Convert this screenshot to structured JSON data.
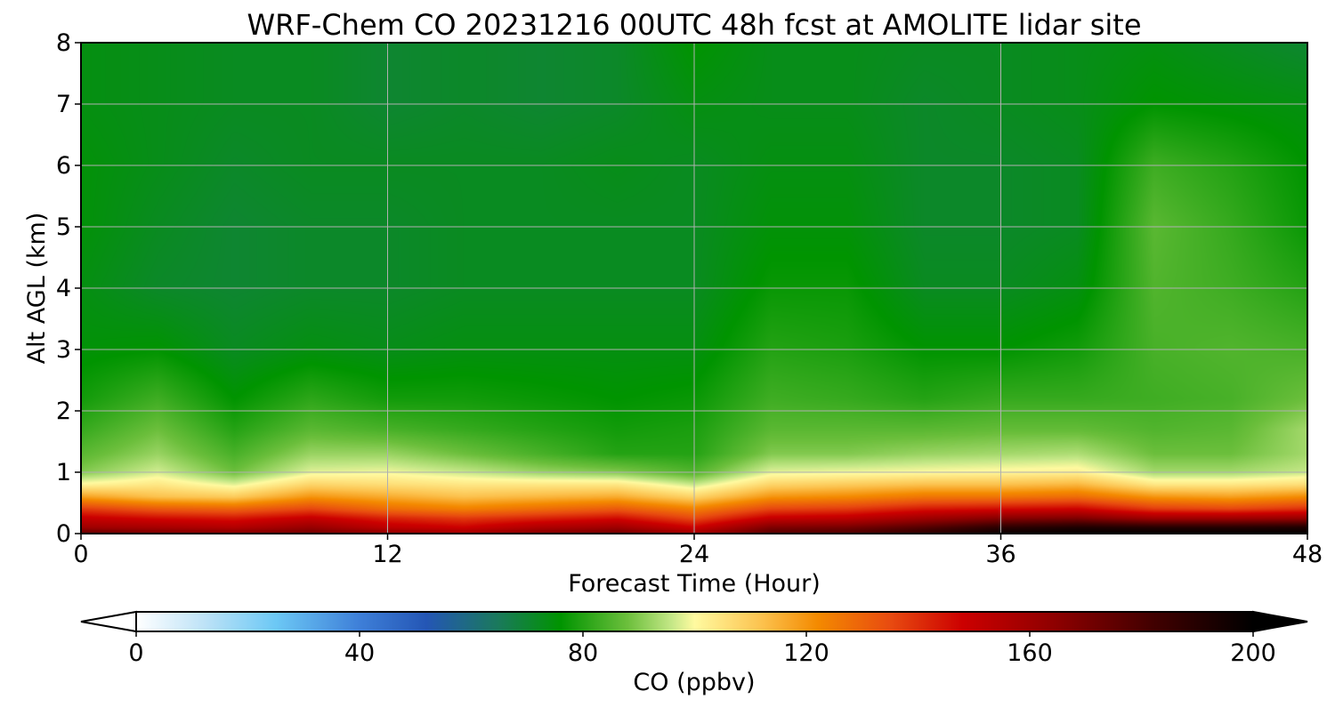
{
  "chart_data": {
    "type": "heatmap",
    "title": "WRF-Chem CO  20231216 00UTC 48h fcst at AMOLITE lidar site",
    "xlabel": "Forecast Time (Hour)",
    "ylabel": "Alt AGL (km)",
    "xlim": [
      0,
      48
    ],
    "ylim": [
      0,
      8
    ],
    "x_ticks": [
      0,
      12,
      24,
      36,
      48
    ],
    "y_ticks": [
      0,
      1,
      2,
      3,
      4,
      5,
      6,
      7,
      8
    ],
    "grid": true,
    "colorbar": {
      "label": "CO  (ppbv)",
      "range": [
        0,
        200
      ],
      "ticks": [
        0,
        40,
        80,
        120,
        160,
        200
      ],
      "extend": "both",
      "stops": [
        {
          "v": 0,
          "c": "#ffffff"
        },
        {
          "v": 12,
          "c": "#bfe3f7"
        },
        {
          "v": 25,
          "c": "#6cc8f5"
        },
        {
          "v": 40,
          "c": "#3e7fd8"
        },
        {
          "v": 52,
          "c": "#2456b5"
        },
        {
          "v": 65,
          "c": "#1a7a5a"
        },
        {
          "v": 76,
          "c": "#009400"
        },
        {
          "v": 88,
          "c": "#6cbf3c"
        },
        {
          "v": 96,
          "c": "#c6e888"
        },
        {
          "v": 100,
          "c": "#fffaa0"
        },
        {
          "v": 112,
          "c": "#fcc24e"
        },
        {
          "v": 122,
          "c": "#f48a00"
        },
        {
          "v": 135,
          "c": "#e84b10"
        },
        {
          "v": 148,
          "c": "#cc0000"
        },
        {
          "v": 165,
          "c": "#8c0000"
        },
        {
          "v": 182,
          "c": "#420000"
        },
        {
          "v": 200,
          "c": "#000000"
        }
      ]
    },
    "time_hours": [
      0,
      3,
      6,
      9,
      12,
      15,
      18,
      21,
      24,
      27,
      30,
      33,
      36,
      39,
      42,
      45,
      48
    ],
    "altitude_km": [
      0,
      0.1,
      0.25,
      0.4,
      0.6,
      0.8,
      1.0,
      1.3,
      1.7,
      2.2,
      3,
      4,
      5,
      6,
      7,
      8
    ],
    "co_ppbv": [
      [
        176,
        170,
        168,
        172,
        165,
        160,
        168,
        172,
        160,
        178,
        180,
        188,
        198,
        200,
        200,
        200,
        200
      ],
      [
        160,
        158,
        155,
        162,
        152,
        148,
        156,
        160,
        148,
        168,
        170,
        178,
        188,
        192,
        190,
        190,
        192
      ],
      [
        150,
        146,
        144,
        150,
        142,
        138,
        142,
        146,
        135,
        150,
        152,
        160,
        166,
        168,
        160,
        160,
        162
      ],
      [
        138,
        132,
        130,
        136,
        128,
        124,
        128,
        132,
        124,
        136,
        138,
        144,
        146,
        148,
        138,
        136,
        140
      ],
      [
        118,
        112,
        110,
        120,
        116,
        112,
        114,
        116,
        108,
        120,
        122,
        126,
        126,
        128,
        120,
        118,
        122
      ],
      [
        101,
        104,
        98,
        108,
        106,
        104,
        104,
        104,
        96,
        108,
        110,
        112,
        112,
        114,
        104,
        104,
        106
      ],
      [
        90,
        97,
        88,
        98,
        99,
        96,
        92,
        90,
        85,
        98,
        99,
        100,
        101,
        102,
        93,
        93,
        96
      ],
      [
        86,
        92,
        84,
        92,
        92,
        88,
        84,
        80,
        80,
        90,
        90,
        92,
        93,
        94,
        88,
        88,
        93
      ],
      [
        82,
        88,
        80,
        86,
        84,
        82,
        80,
        78,
        79,
        86,
        86,
        86,
        87,
        87,
        85,
        86,
        93
      ],
      [
        78,
        83,
        76,
        81,
        78,
        78,
        77,
        76,
        77,
        83,
        82,
        80,
        82,
        82,
        83,
        84,
        88
      ],
      [
        75,
        76,
        72,
        74,
        73,
        74,
        74,
        74,
        74,
        80,
        79,
        76,
        76,
        78,
        84,
        85,
        84
      ],
      [
        74,
        71,
        70,
        71,
        71,
        72,
        72,
        72,
        72,
        77,
        77,
        72,
        72,
        74,
        85,
        83,
        80
      ],
      [
        75,
        72,
        70,
        71,
        71,
        72,
        72,
        72,
        72,
        75,
        75,
        71,
        71,
        72,
        86,
        82,
        77
      ],
      [
        75,
        73,
        71,
        72,
        72,
        72,
        72,
        73,
        72,
        74,
        74,
        71,
        71,
        72,
        83,
        80,
        76
      ],
      [
        74,
        73,
        72,
        72,
        70,
        71,
        70,
        71,
        74,
        73,
        73,
        71,
        72,
        73,
        76,
        75,
        74
      ],
      [
        74,
        73,
        72,
        72,
        70,
        71,
        70,
        71,
        76,
        73,
        73,
        72,
        72,
        73,
        74,
        72,
        70
      ]
    ]
  }
}
